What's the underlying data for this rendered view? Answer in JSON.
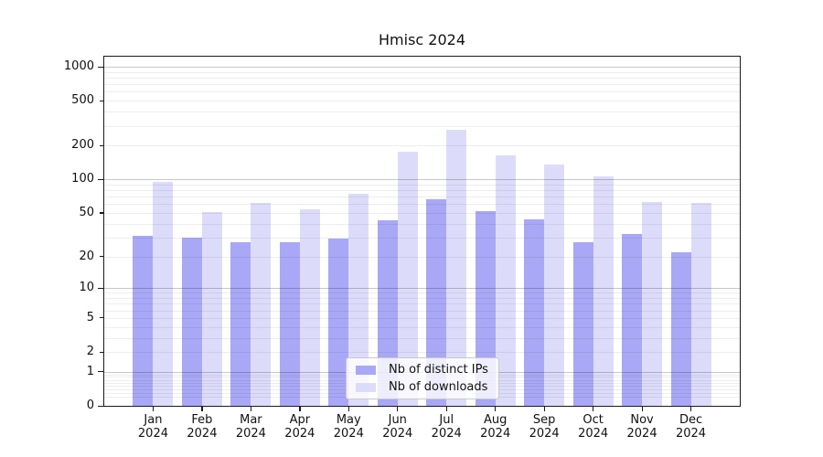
{
  "chart_data": {
    "type": "bar",
    "title": "Hmisc 2024",
    "categories": [
      "Jan 2024",
      "Feb 2024",
      "Mar 2024",
      "Apr 2024",
      "May 2024",
      "Jun 2024",
      "Jul 2024",
      "Aug 2024",
      "Sep 2024",
      "Oct 2024",
      "Nov 2024",
      "Dec 2024"
    ],
    "series": [
      {
        "name": "Nb of distinct IPs",
        "color": "#a8a8f6",
        "values": [
          31,
          30,
          27,
          27,
          29,
          43,
          66,
          52,
          44,
          27,
          32,
          22
        ]
      },
      {
        "name": "Nb of downloads",
        "color": "#dcdcfa",
        "values": [
          94,
          51,
          61,
          54,
          74,
          176,
          278,
          163,
          135,
          106,
          63,
          61
        ]
      }
    ],
    "xlabel": "",
    "ylabel": "",
    "yscale": "log1p",
    "ylim": [
      0,
      1228
    ],
    "yticks": [
      0,
      1,
      2,
      5,
      10,
      20,
      50,
      100,
      200,
      500,
      1000
    ],
    "major_grid_values": [
      1,
      10,
      100,
      1000
    ],
    "grid": "horizontal",
    "legend_position": "lower center",
    "axis_color": "#1a1a1a",
    "background": "#ffffff"
  }
}
